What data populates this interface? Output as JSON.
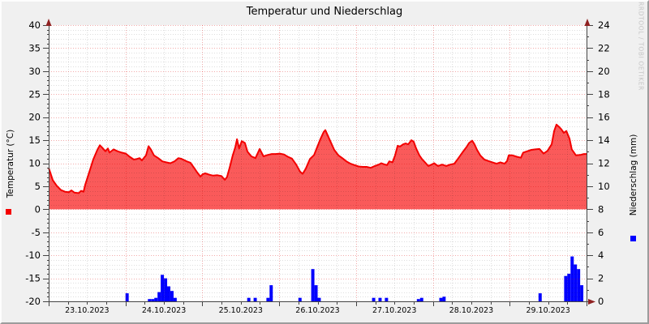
{
  "watermark": "RRDTOOL / TOBI OETIKER",
  "colors": {
    "background": "#f0f0f0",
    "canvas": "#ffffff",
    "temp_fill": "#fa5a5a",
    "temp_line": "#f50000",
    "precip_bar": "#0000ff",
    "grid_major": "rgba(220,0,0,0.33)",
    "grid_minor": "rgba(0,0,0,0.13)",
    "axis": "#444444",
    "arrow": "#8f2121",
    "text": "#000000",
    "watermark_color": "#c6c6c6"
  },
  "chart_data": {
    "type": [
      "area",
      "bar"
    ],
    "title": "Temperatur und Niederschlag",
    "x_axis": {
      "unit": "hours",
      "range_hours": [
        0,
        168
      ],
      "major_tick_hours": 24,
      "minor_tick_hours": 6,
      "day_labels": [
        "23.10.2023",
        "24.10.2023",
        "25.10.2023",
        "26.10.2023",
        "27.10.2023",
        "28.10.2023",
        "29.10.2023"
      ]
    },
    "y_left": {
      "label": "Temperatur (°C)",
      "min": -20,
      "max": 40,
      "major_step": 5,
      "minor_step": 1,
      "ticks": [
        40,
        35,
        30,
        25,
        20,
        15,
        10,
        5,
        0,
        -5,
        -10,
        -15,
        -20
      ]
    },
    "y_right": {
      "label": "Niederschlag (mm)",
      "min": 0,
      "max": 24,
      "major_step": 2,
      "minor_step": 1,
      "ticks": [
        24,
        22,
        20,
        18,
        16,
        14,
        12,
        10,
        8,
        6,
        4,
        2,
        0
      ]
    },
    "series": [
      {
        "name": "Temperatur",
        "type": "area-line",
        "axis": "left",
        "baseline": 0,
        "points": [
          [
            0,
            9
          ],
          [
            1.3,
            6.3
          ],
          [
            2.5,
            5.1
          ],
          [
            3.8,
            4.2
          ],
          [
            5.1,
            3.8
          ],
          [
            6.3,
            3.7
          ],
          [
            7.1,
            4.1
          ],
          [
            8.1,
            3.6
          ],
          [
            9.4,
            3.5
          ],
          [
            10.1,
            4
          ],
          [
            10.9,
            3.8
          ],
          [
            11.4,
            5.3
          ],
          [
            12.7,
            8.1
          ],
          [
            13.9,
            10.8
          ],
          [
            15.2,
            12.9
          ],
          [
            16,
            13.9
          ],
          [
            16.7,
            13.4
          ],
          [
            17.7,
            12.6
          ],
          [
            18.5,
            13.2
          ],
          [
            19,
            12.3
          ],
          [
            20.3,
            13
          ],
          [
            21.5,
            12.6
          ],
          [
            22.8,
            12.3
          ],
          [
            24.1,
            12.1
          ],
          [
            25.3,
            11.4
          ],
          [
            26.6,
            10.8
          ],
          [
            27.4,
            10.9
          ],
          [
            28.4,
            11.1
          ],
          [
            29.1,
            10.6
          ],
          [
            30.4,
            11.7
          ],
          [
            31.2,
            13.7
          ],
          [
            31.9,
            13
          ],
          [
            32.9,
            11.7
          ],
          [
            34.2,
            11.1
          ],
          [
            35.5,
            10.4
          ],
          [
            36.7,
            10.2
          ],
          [
            38,
            10
          ],
          [
            39.3,
            10.4
          ],
          [
            40.5,
            11.1
          ],
          [
            41.3,
            11
          ],
          [
            42.6,
            10.6
          ],
          [
            43.1,
            10.4
          ],
          [
            44.3,
            10.1
          ],
          [
            45.6,
            8.8
          ],
          [
            46.4,
            8
          ],
          [
            47.4,
            7.1
          ],
          [
            48.1,
            7.6
          ],
          [
            48.9,
            7.8
          ],
          [
            50.2,
            7.5
          ],
          [
            51.4,
            7.3
          ],
          [
            52.7,
            7.4
          ],
          [
            54,
            7.2
          ],
          [
            55,
            6.4
          ],
          [
            55.7,
            7
          ],
          [
            56.5,
            9
          ],
          [
            57.5,
            11.7
          ],
          [
            58.3,
            13.5
          ],
          [
            58.8,
            15.2
          ],
          [
            59.5,
            13.2
          ],
          [
            60.3,
            14.8
          ],
          [
            61.3,
            14.4
          ],
          [
            62.1,
            12.5
          ],
          [
            63.3,
            11.5
          ],
          [
            64.6,
            11.1
          ],
          [
            65.9,
            13.1
          ],
          [
            67.1,
            11.5
          ],
          [
            68.4,
            11.8
          ],
          [
            69.7,
            12
          ],
          [
            70.9,
            12
          ],
          [
            72.2,
            12.1
          ],
          [
            73.5,
            11.9
          ],
          [
            74.7,
            11.4
          ],
          [
            76,
            11
          ],
          [
            77.3,
            9.7
          ],
          [
            78.5,
            8.2
          ],
          [
            79.3,
            7.7
          ],
          [
            80.3,
            8.8
          ],
          [
            81.6,
            10.9
          ],
          [
            82.9,
            11.8
          ],
          [
            83.6,
            13
          ],
          [
            84.9,
            15.3
          ],
          [
            85.9,
            16.8
          ],
          [
            86.4,
            17.2
          ],
          [
            87.2,
            16
          ],
          [
            87.9,
            14.9
          ],
          [
            89.2,
            12.9
          ],
          [
            90.5,
            11.7
          ],
          [
            91.7,
            11.1
          ],
          [
            93,
            10.4
          ],
          [
            94.3,
            9.9
          ],
          [
            95.5,
            9.6
          ],
          [
            96.8,
            9.3
          ],
          [
            98.1,
            9.2
          ],
          [
            99.3,
            9.2
          ],
          [
            100.6,
            9
          ],
          [
            101.9,
            9.4
          ],
          [
            103.1,
            9.7
          ],
          [
            103.9,
            10
          ],
          [
            104.6,
            9.8
          ],
          [
            105.7,
            9.6
          ],
          [
            106.4,
            10.4
          ],
          [
            107.4,
            10.2
          ],
          [
            108.2,
            11.7
          ],
          [
            109,
            13.8
          ],
          [
            109.7,
            13.6
          ],
          [
            110.7,
            14.1
          ],
          [
            111.5,
            14.3
          ],
          [
            112.3,
            14.1
          ],
          [
            113.3,
            15
          ],
          [
            114,
            14.7
          ],
          [
            114.8,
            13.2
          ],
          [
            115.8,
            11.7
          ],
          [
            116.6,
            10.9
          ],
          [
            117.8,
            10
          ],
          [
            118.6,
            9.4
          ],
          [
            119.6,
            9.7
          ],
          [
            120.4,
            10
          ],
          [
            121.6,
            9.4
          ],
          [
            122.9,
            9.7
          ],
          [
            124.2,
            9.4
          ],
          [
            125.4,
            9.7
          ],
          [
            126.7,
            9.9
          ],
          [
            128,
            11.1
          ],
          [
            129.2,
            12.3
          ],
          [
            130.5,
            13.5
          ],
          [
            131.3,
            14.4
          ],
          [
            132.3,
            14.9
          ],
          [
            133,
            14.1
          ],
          [
            133.8,
            12.9
          ],
          [
            134.8,
            11.7
          ],
          [
            136.1,
            10.8
          ],
          [
            137.3,
            10.5
          ],
          [
            138.6,
            10.2
          ],
          [
            139.9,
            9.9
          ],
          [
            141.1,
            10.2
          ],
          [
            142.4,
            9.9
          ],
          [
            143.2,
            10.5
          ],
          [
            143.7,
            11.7
          ],
          [
            144.9,
            11.7
          ],
          [
            146.2,
            11.4
          ],
          [
            147.5,
            11.2
          ],
          [
            148.2,
            12.3
          ],
          [
            149.5,
            12.6
          ],
          [
            150.8,
            12.9
          ],
          [
            152,
            13
          ],
          [
            153.3,
            13.1
          ],
          [
            154.6,
            12.1
          ],
          [
            155.8,
            12.7
          ],
          [
            157.1,
            14.1
          ],
          [
            157.9,
            17
          ],
          [
            158.6,
            18.4
          ],
          [
            159.4,
            17.9
          ],
          [
            160.1,
            17.4
          ],
          [
            160.9,
            16.6
          ],
          [
            161.7,
            17
          ],
          [
            162.7,
            15.3
          ],
          [
            163.4,
            13
          ],
          [
            164.7,
            11.7
          ],
          [
            166,
            11.8
          ],
          [
            167.2,
            12
          ],
          [
            168,
            12
          ]
        ]
      },
      {
        "name": "Niederschlag",
        "type": "bar",
        "axis": "right",
        "bar_width_hours": 1,
        "points": [
          [
            24,
            0.7
          ],
          [
            31,
            0.2
          ],
          [
            32,
            0.2
          ],
          [
            33,
            0.3
          ],
          [
            34,
            0.8
          ],
          [
            35,
            2.3
          ],
          [
            36,
            2.0
          ],
          [
            37,
            1.3
          ],
          [
            38,
            0.9
          ],
          [
            39,
            0.3
          ],
          [
            62,
            0.3
          ],
          [
            64,
            0.3
          ],
          [
            68,
            0.3
          ],
          [
            69,
            1.4
          ],
          [
            78,
            0.3
          ],
          [
            82,
            2.8
          ],
          [
            83,
            1.4
          ],
          [
            84,
            0.3
          ],
          [
            101,
            0.3
          ],
          [
            103,
            0.3
          ],
          [
            105,
            0.3
          ],
          [
            115,
            0.2
          ],
          [
            116,
            0.3
          ],
          [
            122,
            0.3
          ],
          [
            123,
            0.4
          ],
          [
            153,
            0.7
          ],
          [
            161,
            2.2
          ],
          [
            162,
            2.4
          ],
          [
            163,
            3.9
          ],
          [
            164,
            3.2
          ],
          [
            165,
            2.8
          ],
          [
            166,
            1.4
          ]
        ]
      }
    ],
    "grid": "dotted",
    "legend_markers": [
      {
        "name": "Temperatur",
        "color": "#f50000",
        "position": "left"
      },
      {
        "name": "Niederschlag",
        "color": "#0000ff",
        "position": "right"
      }
    ]
  }
}
